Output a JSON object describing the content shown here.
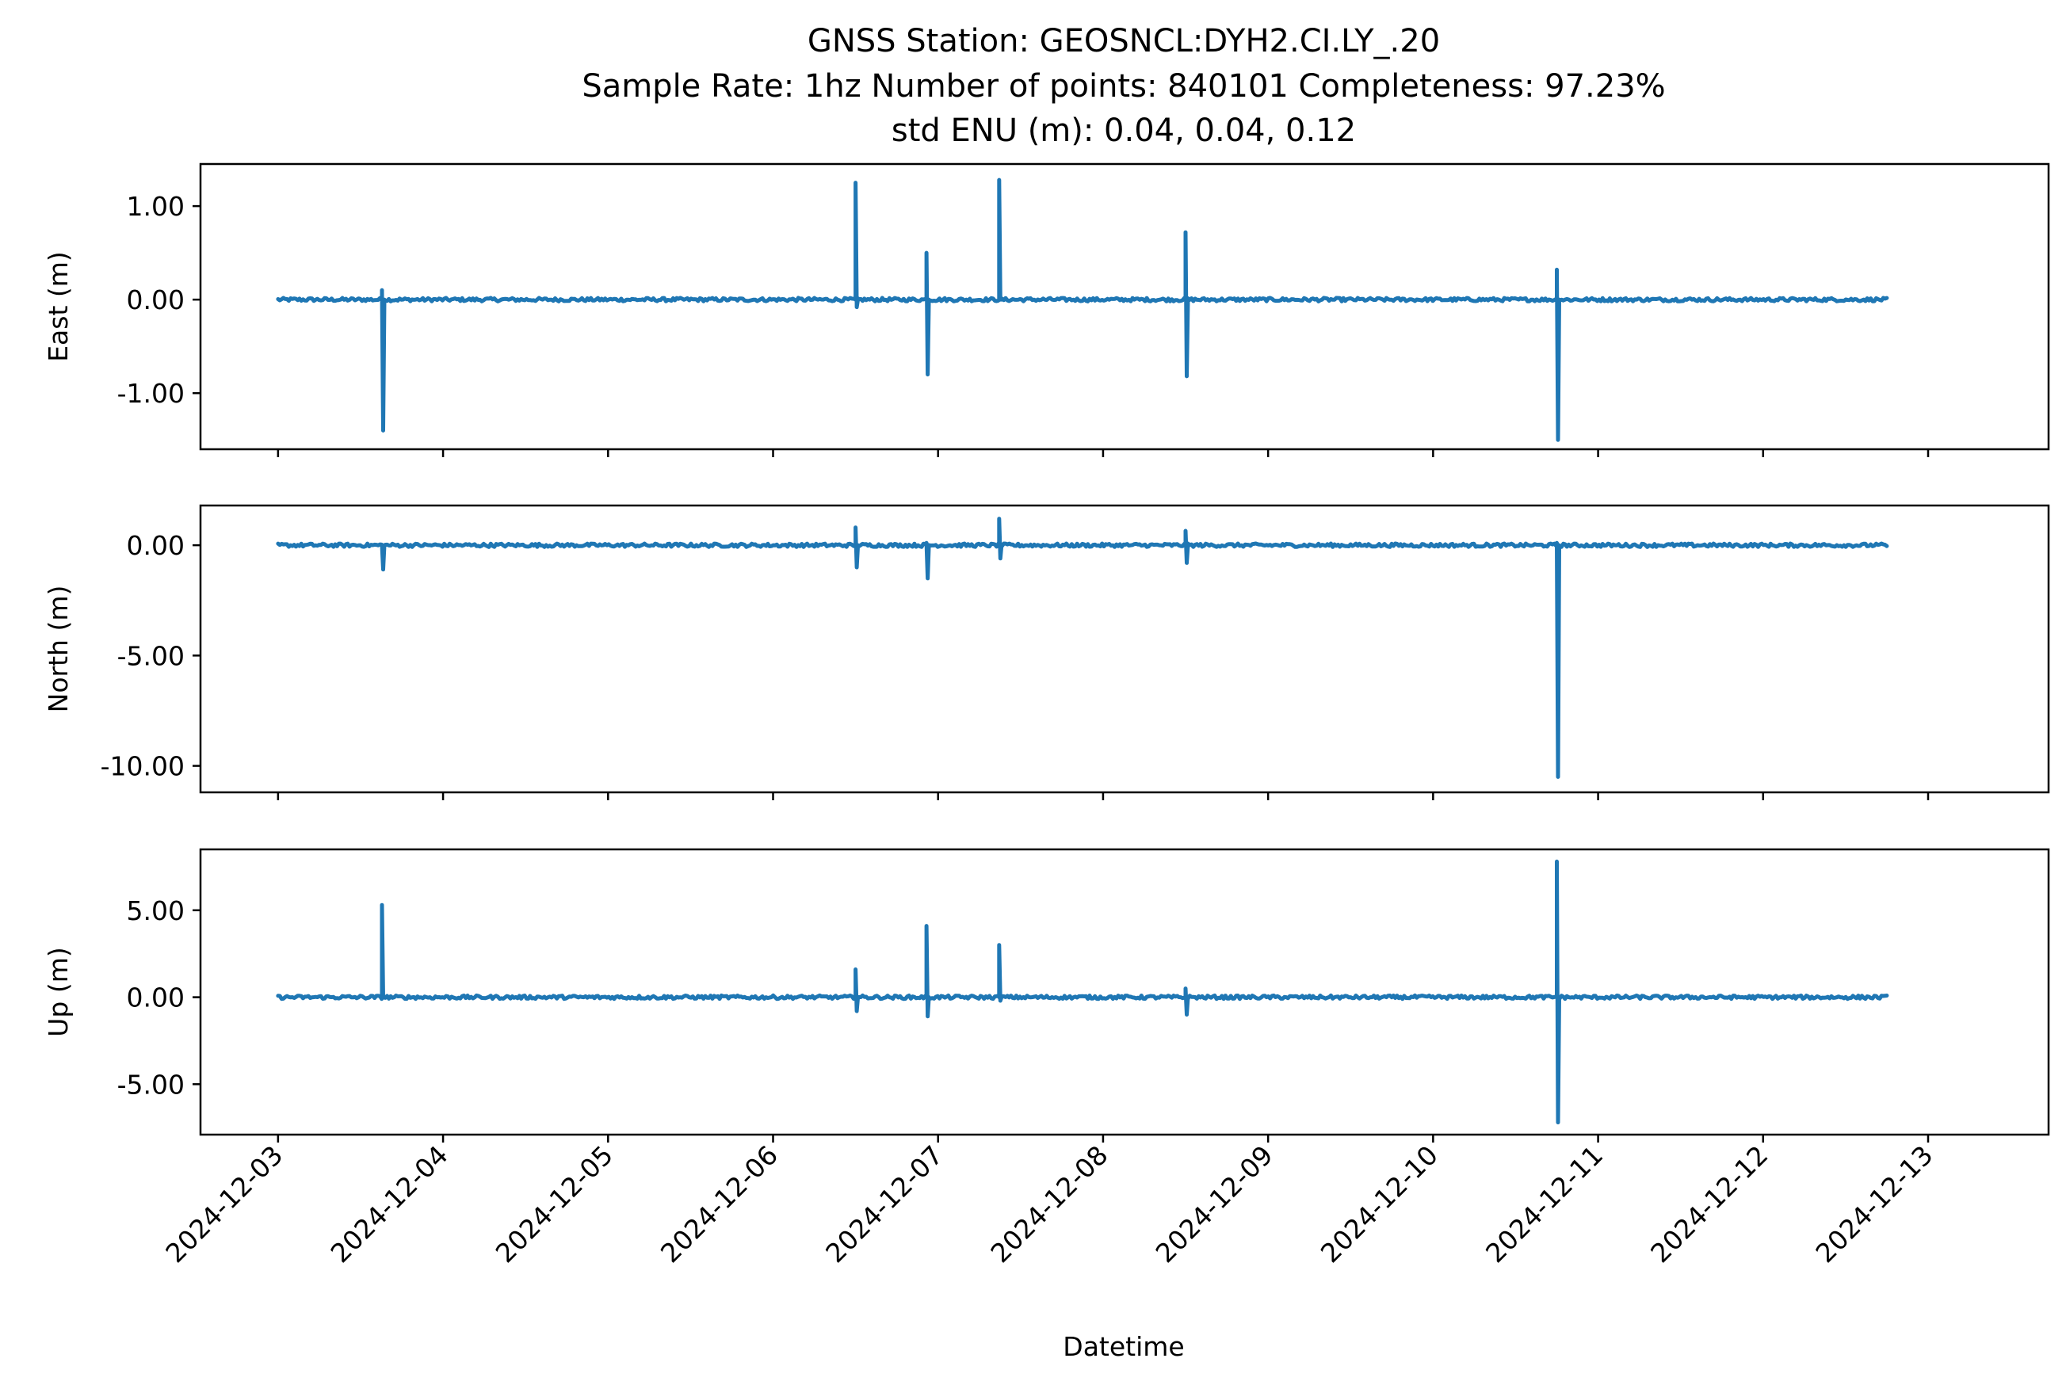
{
  "title": {
    "line1": "GNSS Station: GEOSNCL:DYH2.CI.LY_.20",
    "line2": "Sample Rate: 1hz   Number of points: 840101    Completeness:  97.23%",
    "line3": "std ENU (m):  0.04, 0.04, 0.12"
  },
  "colors": {
    "series": "#1f77b4",
    "axes": "#000000",
    "background": "#ffffff"
  },
  "chart_data": [
    {
      "type": "line",
      "ylabel": "East (m)",
      "xlim": [
        -0.47,
        10.73
      ],
      "ylim": [
        -1.6,
        1.45
      ],
      "yticks": [
        1.0,
        0.0,
        -1.0
      ],
      "ytick_labels": [
        "1.00",
        "0.00",
        "-1.00"
      ],
      "xtick_labels_shown": false,
      "series": [
        {
          "baseline": 0.0,
          "x_start": 0.0,
          "x_end": 9.75,
          "spikes": [
            {
              "x": 0.63,
              "low": -1.4,
              "high": 0.1
            },
            {
              "x": 3.5,
              "low": -0.08,
              "high": 1.25
            },
            {
              "x": 3.93,
              "low": -0.8,
              "high": 0.5
            },
            {
              "x": 4.37,
              "low": 0.0,
              "high": 1.28
            },
            {
              "x": 5.5,
              "low": -0.82,
              "high": 0.72
            },
            {
              "x": 7.75,
              "low": -1.5,
              "high": 0.32
            }
          ]
        }
      ]
    },
    {
      "type": "line",
      "ylabel": "North (m)",
      "xlim": [
        -0.47,
        10.73
      ],
      "ylim": [
        -11.2,
        1.8
      ],
      "yticks": [
        0.0,
        -5.0,
        -10.0
      ],
      "ytick_labels": [
        "0.00",
        "-5.00",
        "-10.00"
      ],
      "xtick_labels_shown": false,
      "series": [
        {
          "baseline": 0.0,
          "x_start": 0.0,
          "x_end": 9.75,
          "spikes": [
            {
              "x": 0.63,
              "low": -1.1,
              "high": 0.0
            },
            {
              "x": 3.5,
              "low": -1.0,
              "high": 0.8
            },
            {
              "x": 3.93,
              "low": -1.5,
              "high": 0.1
            },
            {
              "x": 4.37,
              "low": -0.6,
              "high": 1.2
            },
            {
              "x": 5.5,
              "low": -0.8,
              "high": 0.65
            },
            {
              "x": 7.75,
              "low": -10.5,
              "high": 0.1
            }
          ]
        }
      ]
    },
    {
      "type": "line",
      "ylabel": "Up (m)",
      "xlabel": "Datetime",
      "xlim": [
        -0.47,
        10.73
      ],
      "ylim": [
        -7.9,
        8.5
      ],
      "yticks": [
        5.0,
        0.0,
        -5.0
      ],
      "ytick_labels": [
        "5.00",
        "0.00",
        "-5.00"
      ],
      "xtick_labels_shown": true,
      "series": [
        {
          "baseline": 0.0,
          "x_start": 0.0,
          "x_end": 9.75,
          "spikes": [
            {
              "x": 0.63,
              "low": 0.0,
              "high": 5.3
            },
            {
              "x": 3.5,
              "low": -0.8,
              "high": 1.6
            },
            {
              "x": 3.93,
              "low": -1.1,
              "high": 4.1
            },
            {
              "x": 4.37,
              "low": -0.2,
              "high": 3.0
            },
            {
              "x": 5.5,
              "low": -1.0,
              "high": 0.5
            },
            {
              "x": 7.75,
              "low": -7.2,
              "high": 7.8
            }
          ]
        }
      ]
    }
  ],
  "x_axis": {
    "label": "Datetime",
    "tick_labels": [
      "2024-12-03",
      "2024-12-04",
      "2024-12-05",
      "2024-12-06",
      "2024-12-07",
      "2024-12-08",
      "2024-12-09",
      "2024-12-10",
      "2024-12-11",
      "2024-12-12",
      "2024-12-13"
    ]
  }
}
